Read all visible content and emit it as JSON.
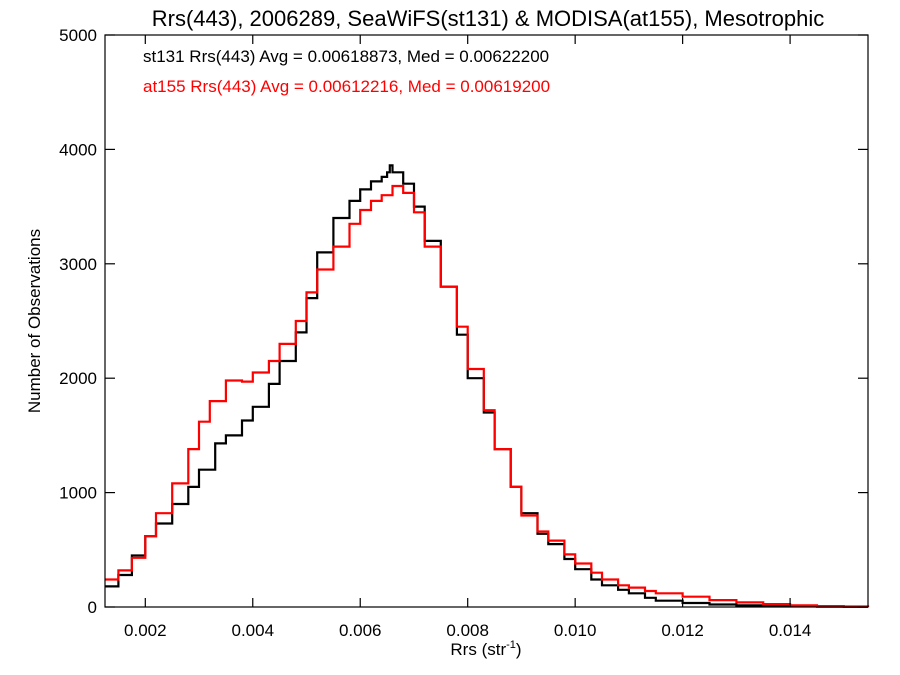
{
  "chart_data": {
    "type": "line",
    "title": "Rrs(443), 2006289, SeaWiFS(st131) & MODISA(at155), Mesotrophic",
    "xlabel_main": "Rrs (str",
    "xlabel_sup": "-1",
    "xlabel_close": ")",
    "ylabel": "Number of Observations",
    "xlim": [
      0.00125,
      0.01545
    ],
    "ylim": [
      0,
      5000
    ],
    "x_ticks": [
      0.002,
      0.004,
      0.006,
      0.008,
      0.01,
      0.012,
      0.014
    ],
    "x_tick_labels": [
      "0.002",
      "0.004",
      "0.006",
      "0.008",
      "0.010",
      "0.012",
      "0.014"
    ],
    "y_ticks": [
      0,
      1000,
      2000,
      3000,
      4000,
      5000
    ],
    "y_tick_labels": [
      "0",
      "1000",
      "2000",
      "3000",
      "4000",
      "5000"
    ],
    "legend_position": "top-left",
    "annotations": [
      {
        "text": "st131 Rrs(443) Avg = 0.00618873, Med = 0.00622200",
        "color": "#000000"
      },
      {
        "text": "at155 Rrs(443) Avg = 0.00612216, Med = 0.00619200",
        "color": "#ff0000"
      }
    ],
    "series": [
      {
        "name": "st131",
        "color": "#000000",
        "x": [
          0.00125,
          0.0015,
          0.00175,
          0.002,
          0.0022,
          0.0025,
          0.0028,
          0.003,
          0.0033,
          0.0035,
          0.0038,
          0.004,
          0.0043,
          0.0045,
          0.0048,
          0.005,
          0.0052,
          0.0055,
          0.0058,
          0.006,
          0.0062,
          0.0064,
          0.0065,
          0.00655,
          0.0066,
          0.0068,
          0.007,
          0.0072,
          0.0075,
          0.0078,
          0.008,
          0.0083,
          0.0085,
          0.0088,
          0.009,
          0.0093,
          0.0095,
          0.0098,
          0.01,
          0.0103,
          0.0105,
          0.0108,
          0.011,
          0.0113,
          0.0115,
          0.012,
          0.0125,
          0.013,
          0.0135,
          0.014,
          0.0145,
          0.015,
          0.01545
        ],
        "y": [
          180,
          280,
          450,
          620,
          730,
          900,
          1050,
          1200,
          1430,
          1500,
          1630,
          1750,
          1950,
          2150,
          2400,
          2700,
          3100,
          3400,
          3550,
          3650,
          3720,
          3760,
          3800,
          3860,
          3800,
          3700,
          3500,
          3200,
          2800,
          2380,
          2000,
          1700,
          1380,
          1050,
          820,
          640,
          550,
          420,
          330,
          240,
          190,
          150,
          120,
          80,
          55,
          35,
          22,
          14,
          8,
          5,
          3,
          2,
          1
        ]
      },
      {
        "name": "at155",
        "color": "#ff0000",
        "x": [
          0.00125,
          0.0015,
          0.00175,
          0.002,
          0.0022,
          0.0025,
          0.0028,
          0.003,
          0.0032,
          0.0035,
          0.0038,
          0.004,
          0.0043,
          0.0045,
          0.0048,
          0.005,
          0.0052,
          0.0055,
          0.0058,
          0.006,
          0.0062,
          0.0064,
          0.0066,
          0.0068,
          0.007,
          0.0072,
          0.0075,
          0.0078,
          0.008,
          0.0083,
          0.0085,
          0.0088,
          0.009,
          0.0093,
          0.0095,
          0.0098,
          0.01,
          0.0103,
          0.0105,
          0.0108,
          0.011,
          0.0113,
          0.0115,
          0.012,
          0.0125,
          0.013,
          0.0135,
          0.014,
          0.0145,
          0.015,
          0.01545
        ],
        "y": [
          240,
          320,
          430,
          620,
          820,
          1080,
          1380,
          1620,
          1800,
          1980,
          1970,
          2050,
          2150,
          2300,
          2500,
          2750,
          2950,
          3150,
          3350,
          3470,
          3550,
          3600,
          3680,
          3620,
          3450,
          3150,
          2800,
          2450,
          2080,
          1720,
          1380,
          1050,
          800,
          660,
          580,
          460,
          380,
          300,
          240,
          190,
          170,
          140,
          120,
          90,
          60,
          40,
          25,
          15,
          8,
          4,
          2
        ]
      }
    ]
  }
}
